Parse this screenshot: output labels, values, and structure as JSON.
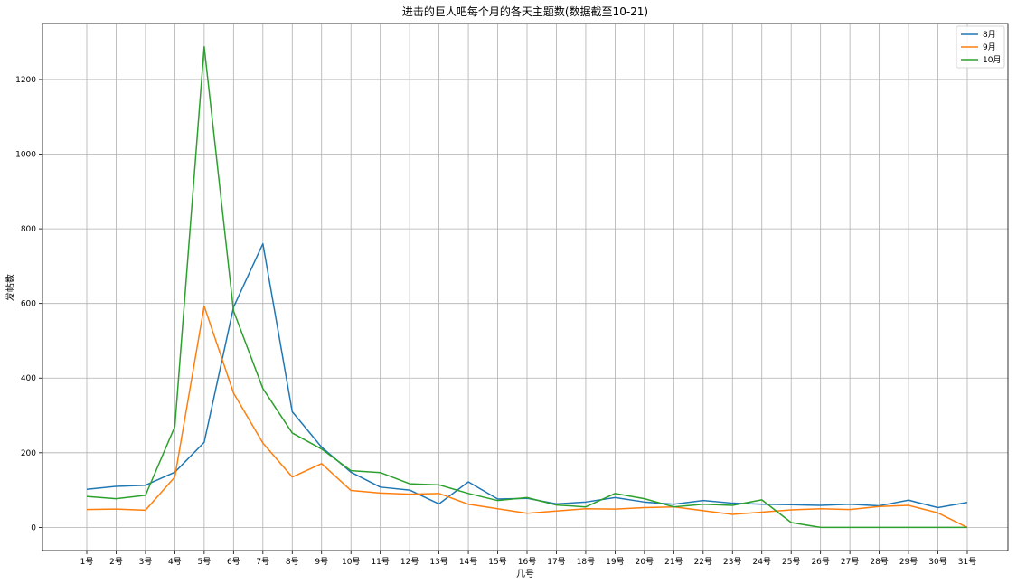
{
  "chart_data": {
    "type": "line",
    "title": "进击的巨人吧每个月的各天主题数(数据截至10-21)",
    "xlabel": "几号",
    "ylabel": "发帖数",
    "categories": [
      "1号",
      "2号",
      "3号",
      "4号",
      "5号",
      "6号",
      "7号",
      "8号",
      "9号",
      "10号",
      "11号",
      "12号",
      "13号",
      "14号",
      "15号",
      "16号",
      "17号",
      "18号",
      "19号",
      "20号",
      "21号",
      "22号",
      "23号",
      "24号",
      "25号",
      "26号",
      "27号",
      "28号",
      "29号",
      "30号",
      "31号"
    ],
    "ylim": [
      -62,
      1350
    ],
    "yticks": [
      0,
      200,
      400,
      600,
      800,
      1000,
      1200
    ],
    "grid": true,
    "legend_position": "top-right",
    "series": [
      {
        "name": "8月",
        "color": "#1f77b4",
        "values": [
          102,
          110,
          113,
          148,
          228,
          590,
          760,
          310,
          215,
          148,
          108,
          100,
          63,
          122,
          76,
          78,
          63,
          68,
          80,
          68,
          62,
          72,
          65,
          62,
          61,
          59,
          62,
          58,
          73,
          53,
          67
        ]
      },
      {
        "name": "9月",
        "color": "#ff7f0e",
        "values": [
          48,
          49,
          46,
          135,
          593,
          360,
          226,
          135,
          171,
          99,
          92,
          89,
          91,
          62,
          50,
          38,
          44,
          50,
          49,
          53,
          55,
          45,
          35,
          41,
          47,
          50,
          48,
          56,
          59,
          39,
          0
        ]
      },
      {
        "name": "10月",
        "color": "#2ca02c",
        "values": [
          83,
          77,
          86,
          270,
          1288,
          580,
          372,
          253,
          210,
          152,
          147,
          117,
          114,
          91,
          72,
          80,
          60,
          55,
          91,
          77,
          55,
          62,
          59,
          74,
          13,
          0,
          0,
          0,
          0,
          0,
          0
        ]
      }
    ]
  }
}
